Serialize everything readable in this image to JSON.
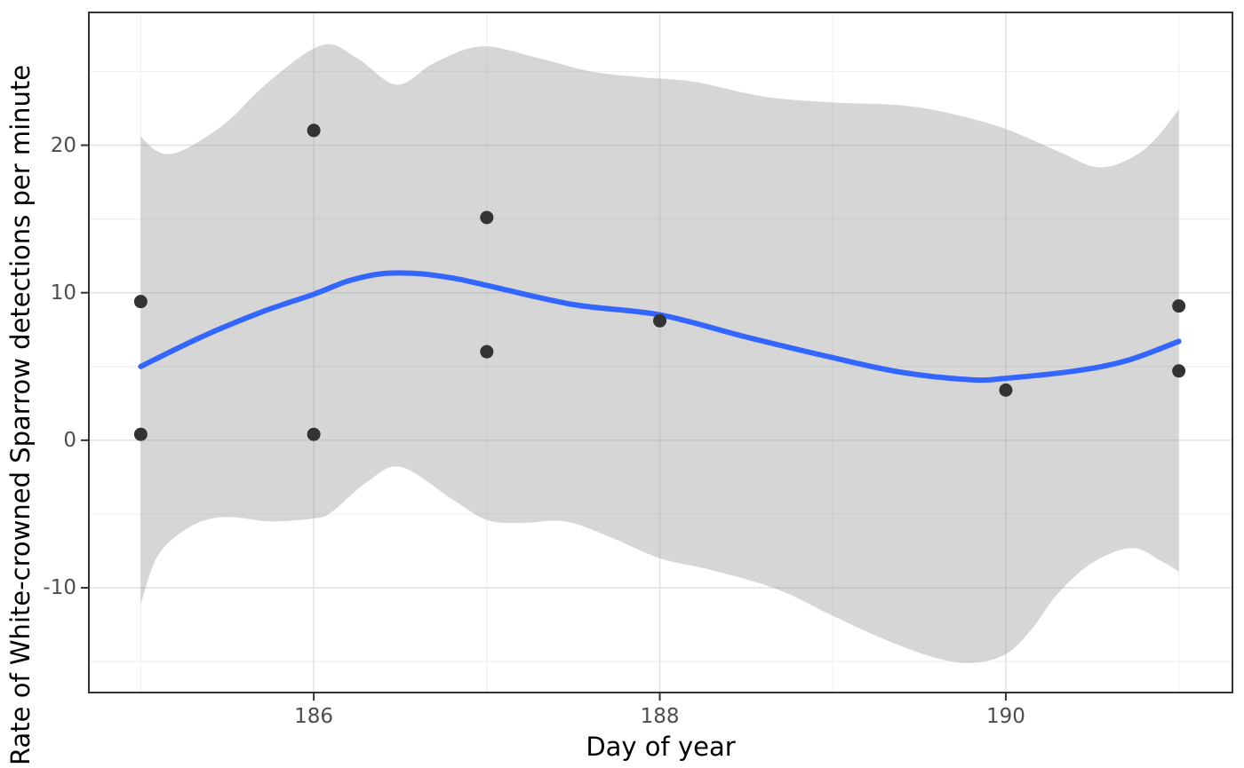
{
  "figure": {
    "background": "#ffffff"
  },
  "chart_data": {
    "type": "scatter",
    "title": "",
    "xlabel": "Day of year",
    "ylabel": "Rate of White-crowned Sparrow detections per minute",
    "xlim": [
      184.7,
      191.31
    ],
    "ylim": [
      -17.1,
      29.0
    ],
    "grid": "major and minor, light gray on white, ggplot theme_bw style",
    "legend_position": "none",
    "x_major_ticks": {
      "values": [
        186,
        188,
        190
      ],
      "labels": [
        "186",
        "188",
        "190"
      ]
    },
    "x_minor_gridlines": [
      185,
      187,
      189,
      191
    ],
    "y_major_ticks": {
      "values": [
        -10,
        0,
        10,
        20
      ],
      "labels": [
        "-10",
        "0",
        "10",
        "20"
      ]
    },
    "y_minor_gridlines": [
      -15,
      -5,
      5,
      15,
      25
    ],
    "series": [
      {
        "name": "confidence-band",
        "type": "band",
        "color": "#999999",
        "opacity": 0.4,
        "upper": [
          [
            185.0,
            20.6
          ],
          [
            185.08,
            19.7
          ],
          [
            185.17,
            19.4
          ],
          [
            185.3,
            20.0
          ],
          [
            185.5,
            21.6
          ],
          [
            185.75,
            24.4
          ],
          [
            186.05,
            26.8
          ],
          [
            186.25,
            25.9
          ],
          [
            186.48,
            24.1
          ],
          [
            186.7,
            25.6
          ],
          [
            186.97,
            26.7
          ],
          [
            187.3,
            25.9
          ],
          [
            187.6,
            25.0
          ],
          [
            187.9,
            24.6
          ],
          [
            188.2,
            24.3
          ],
          [
            188.6,
            23.3
          ],
          [
            189.0,
            22.9
          ],
          [
            189.4,
            22.7
          ],
          [
            189.7,
            22.1
          ],
          [
            190.0,
            21.1
          ],
          [
            190.3,
            19.6
          ],
          [
            190.55,
            18.5
          ],
          [
            190.8,
            19.7
          ],
          [
            191.0,
            22.4
          ]
        ],
        "lower": [
          [
            185.0,
            -11.1
          ],
          [
            185.1,
            -7.8
          ],
          [
            185.28,
            -5.9
          ],
          [
            185.48,
            -5.2
          ],
          [
            185.75,
            -5.5
          ],
          [
            186.0,
            -5.3
          ],
          [
            186.1,
            -4.9
          ],
          [
            186.3,
            -2.9
          ],
          [
            186.5,
            -1.8
          ],
          [
            186.8,
            -4.0
          ],
          [
            187.0,
            -5.4
          ],
          [
            187.2,
            -5.6
          ],
          [
            187.45,
            -5.5
          ],
          [
            187.7,
            -6.5
          ],
          [
            188.0,
            -8.0
          ],
          [
            188.3,
            -8.8
          ],
          [
            188.68,
            -10.1
          ],
          [
            189.0,
            -11.9
          ],
          [
            189.3,
            -13.5
          ],
          [
            189.58,
            -14.7
          ],
          [
            189.8,
            -15.1
          ],
          [
            190.0,
            -14.5
          ],
          [
            190.15,
            -12.8
          ],
          [
            190.3,
            -10.4
          ],
          [
            190.5,
            -8.3
          ],
          [
            190.73,
            -7.3
          ],
          [
            190.9,
            -8.2
          ],
          [
            191.0,
            -8.9
          ]
        ]
      },
      {
        "name": "loess-smooth-line",
        "type": "line",
        "color": "#3366FF",
        "width": 6,
        "points": [
          [
            185.0,
            5.0
          ],
          [
            185.35,
            7.0
          ],
          [
            185.7,
            8.7
          ],
          [
            186.0,
            9.9
          ],
          [
            186.2,
            10.8
          ],
          [
            186.4,
            11.3
          ],
          [
            186.6,
            11.3
          ],
          [
            186.8,
            11.0
          ],
          [
            187.0,
            10.5
          ],
          [
            187.5,
            9.2
          ],
          [
            188.0,
            8.5
          ],
          [
            188.5,
            7.0
          ],
          [
            189.0,
            5.6
          ],
          [
            189.4,
            4.6
          ],
          [
            189.8,
            4.1
          ],
          [
            190.0,
            4.2
          ],
          [
            190.4,
            4.7
          ],
          [
            190.7,
            5.4
          ],
          [
            191.0,
            6.7
          ]
        ]
      },
      {
        "name": "observations",
        "type": "points",
        "color": "#333333",
        "radius": 7.5,
        "points": [
          [
            185,
            9.4
          ],
          [
            185,
            0.4
          ],
          [
            186,
            21.0
          ],
          [
            186,
            0.4
          ],
          [
            187,
            15.1
          ],
          [
            187,
            6.0
          ],
          [
            188,
            8.1
          ],
          [
            190,
            3.4
          ],
          [
            191,
            9.1
          ],
          [
            191,
            4.7
          ]
        ]
      }
    ],
    "colors": {
      "panel_background": "#ffffff",
      "panel_border": "#333333",
      "grid_major": "#e3e3e3",
      "grid_minor": "#f0f0f0",
      "tick_mark": "#333333",
      "tick_label": "#4d4d4d",
      "axis_title": "#000000",
      "smooth_line": "#3366FF",
      "band_fill": "#999999",
      "point_fill": "#333333"
    }
  }
}
